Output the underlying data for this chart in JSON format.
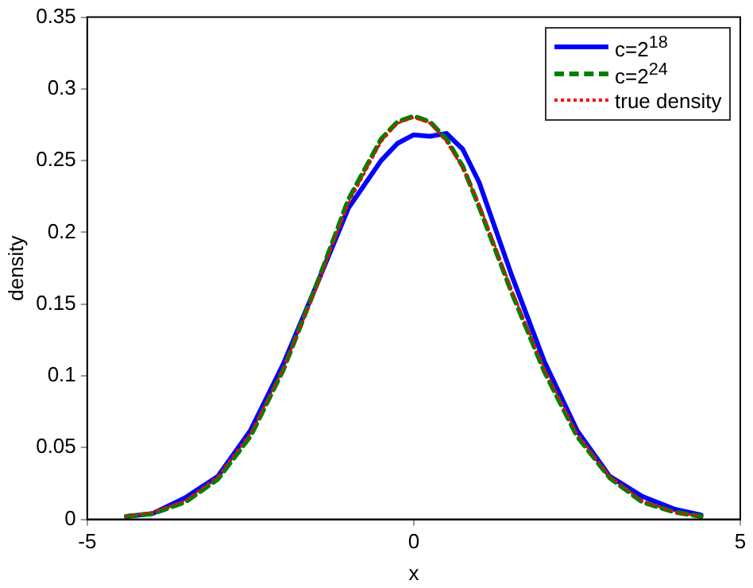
{
  "chart_data": {
    "type": "line",
    "xlabel": "x",
    "ylabel": "density",
    "x": [
      -4.4,
      -4,
      -3.5,
      -3,
      -2.5,
      -2,
      -1.5,
      -1,
      -0.5,
      -0.25,
      0,
      0.25,
      0.5,
      0.75,
      1,
      1.5,
      2,
      2.5,
      3,
      3.5,
      4,
      4.4
    ],
    "series": [
      {
        "name": "c=2$^{18}$",
        "color": "#0000ff",
        "line_style": "solid",
        "values": [
          0.002,
          0.004,
          0.015,
          0.03,
          0.062,
          0.108,
          0.162,
          0.217,
          0.25,
          0.262,
          0.268,
          0.267,
          0.269,
          0.258,
          0.235,
          0.17,
          0.11,
          0.062,
          0.03,
          0.016,
          0.007,
          0.003
        ]
      },
      {
        "name": "c=2$^{24}$",
        "color": "#007f00",
        "line_style": "dashed",
        "values": [
          0.002,
          0.004,
          0.012,
          0.028,
          0.058,
          0.104,
          0.162,
          0.223,
          0.265,
          0.277,
          0.281,
          0.277,
          0.265,
          0.246,
          0.218,
          0.158,
          0.103,
          0.058,
          0.029,
          0.012,
          0.005,
          0.002
        ]
      },
      {
        "name": "true density",
        "color": "#ff0000",
        "line_style": "dotted",
        "values": [
          0.002,
          0.005,
          0.013,
          0.03,
          0.06,
          0.105,
          0.16,
          0.22,
          0.263,
          0.276,
          0.28,
          0.276,
          0.263,
          0.245,
          0.22,
          0.16,
          0.105,
          0.06,
          0.03,
          0.013,
          0.005,
          0.002
        ]
      }
    ],
    "xlim": [
      -5,
      5
    ],
    "xticks": [
      -5,
      0,
      5
    ],
    "ylim": [
      0,
      0.35
    ],
    "yticks": [
      0,
      0.05,
      0.1,
      0.15,
      0.2,
      0.25,
      0.3,
      0.35
    ],
    "legend": "top right",
    "grid": false,
    "marker": "none"
  }
}
